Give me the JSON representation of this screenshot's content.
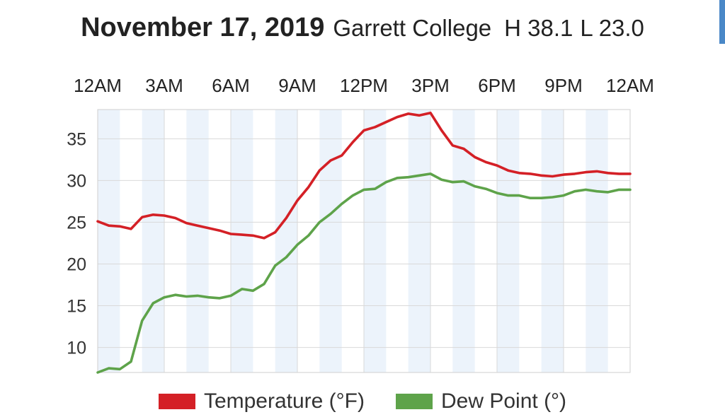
{
  "header": {
    "date": "November 17, 2019",
    "station": "Garrett College",
    "high_label": "H 38.1",
    "low_label": "L 23.0"
  },
  "colors": {
    "temperature": "#d42026",
    "dew_point": "#5ea34a",
    "band": "#ecf3fb",
    "grid": "#d9d9d9"
  },
  "chart_data": {
    "type": "line",
    "title": "November 17, 2019 Garrett College  H 38.1 L 23.0",
    "x_unit": "hour",
    "xlim": [
      0,
      24
    ],
    "ylim": [
      7,
      38.5
    ],
    "x_ticks": [
      {
        "x": 0,
        "label": "12AM"
      },
      {
        "x": 3,
        "label": "3AM"
      },
      {
        "x": 6,
        "label": "6AM"
      },
      {
        "x": 9,
        "label": "9AM"
      },
      {
        "x": 12,
        "label": "12PM"
      },
      {
        "x": 15,
        "label": "3PM"
      },
      {
        "x": 18,
        "label": "6PM"
      },
      {
        "x": 21,
        "label": "9PM"
      },
      {
        "x": 24,
        "label": "12AM"
      }
    ],
    "y_ticks": [
      10,
      15,
      20,
      25,
      30,
      35
    ],
    "grid": true,
    "legend_position": "bottom",
    "series": [
      {
        "name": "Temperature (°F)",
        "color": "#d42026",
        "x": [
          0,
          0.5,
          1,
          1.5,
          2,
          2.5,
          3,
          3.5,
          4,
          4.5,
          5,
          5.5,
          6,
          6.5,
          7,
          7.5,
          8,
          8.5,
          9,
          9.5,
          10,
          10.5,
          11,
          11.5,
          12,
          12.5,
          13,
          13.5,
          14,
          14.5,
          15,
          15.5,
          16,
          16.5,
          17,
          17.5,
          18,
          18.5,
          19,
          19.5,
          20,
          20.5,
          21,
          21.5,
          22,
          22.5,
          23,
          23.5,
          24
        ],
        "values": [
          25.1,
          24.6,
          24.5,
          24.2,
          25.6,
          25.9,
          25.8,
          25.5,
          24.9,
          24.6,
          24.3,
          24.0,
          23.6,
          23.5,
          23.4,
          23.1,
          23.8,
          25.5,
          27.6,
          29.2,
          31.2,
          32.4,
          33.0,
          34.6,
          36.0,
          36.4,
          37.0,
          37.6,
          38.0,
          37.8,
          38.1,
          36.0,
          34.2,
          33.8,
          32.8,
          32.2,
          31.8,
          31.2,
          30.9,
          30.8,
          30.6,
          30.5,
          30.7,
          30.8,
          31.0,
          31.1,
          30.9,
          30.8,
          30.8
        ]
      },
      {
        "name": "Dew Point (°)",
        "color": "#5ea34a",
        "x": [
          0,
          0.5,
          1,
          1.5,
          2,
          2.5,
          3,
          3.5,
          4,
          4.5,
          5,
          5.5,
          6,
          6.5,
          7,
          7.5,
          8,
          8.5,
          9,
          9.5,
          10,
          10.5,
          11,
          11.5,
          12,
          12.5,
          13,
          13.5,
          14,
          14.5,
          15,
          15.5,
          16,
          16.5,
          17,
          17.5,
          18,
          18.5,
          19,
          19.5,
          20,
          20.5,
          21,
          21.5,
          22,
          22.5,
          23,
          23.5,
          24
        ],
        "values": [
          7.0,
          7.5,
          7.4,
          8.3,
          13.2,
          15.3,
          16.0,
          16.3,
          16.1,
          16.2,
          16.0,
          15.9,
          16.2,
          17.0,
          16.8,
          17.6,
          19.8,
          20.8,
          22.3,
          23.4,
          25.0,
          26.0,
          27.2,
          28.2,
          28.9,
          29.0,
          29.8,
          30.3,
          30.4,
          30.6,
          30.8,
          30.1,
          29.8,
          29.9,
          29.3,
          29.0,
          28.5,
          28.2,
          28.2,
          27.9,
          27.9,
          28.0,
          28.2,
          28.7,
          28.9,
          28.7,
          28.6,
          28.9,
          28.9
        ]
      }
    ]
  }
}
